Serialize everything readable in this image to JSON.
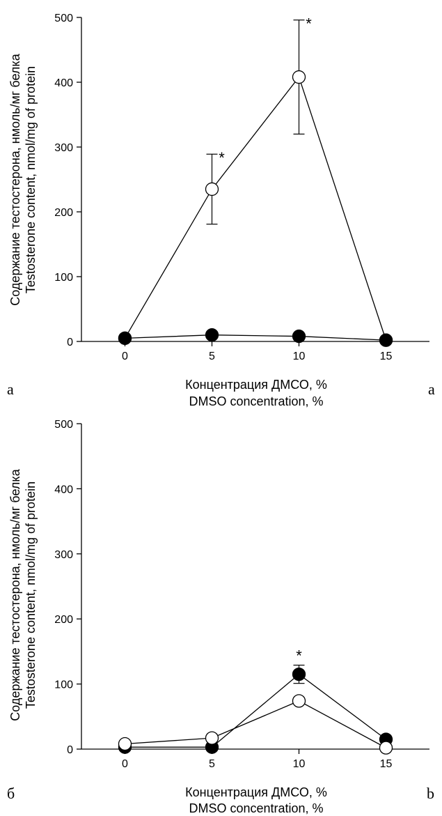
{
  "chart_data": [
    {
      "type": "line",
      "panel_label_left": "а",
      "panel_label_right": "a",
      "xlabel_ru": "Концентрация ДМСО, %",
      "xlabel_en": "DMSO concentration, %",
      "ylabel_ru": "Содержание тестостерона, нмоль/мг белка",
      "ylabel_en": "Testosterone content, nmol/mg of protein",
      "x": [
        0,
        5,
        10,
        15
      ],
      "xticks": [
        0,
        5,
        10,
        15
      ],
      "yticks": [
        0,
        100,
        200,
        300,
        400,
        500
      ],
      "xlim": [
        -2.5,
        17.5
      ],
      "ylim": [
        0,
        500
      ],
      "series": [
        {
          "marker": "open",
          "values": [
            5,
            235,
            408,
            2
          ],
          "error": [
            null,
            54,
            88,
            null
          ]
        },
        {
          "marker": "filled",
          "values": [
            5,
            10,
            8,
            2
          ],
          "error": [
            null,
            null,
            null,
            null
          ]
        }
      ],
      "annotations": [
        {
          "text": "*",
          "x": 5,
          "y": 288
        },
        {
          "text": "*",
          "x": 10,
          "y": 495
        }
      ]
    },
    {
      "type": "line",
      "panel_label_left": "б",
      "panel_label_right": "b",
      "xlabel_ru": "Концентрация ДМСО, %",
      "xlabel_en": "DMSO concentration, %",
      "ylabel_ru": "Содержание тестостерона, нмоль/мг белка",
      "ylabel_en": "Testosterone content, nmol/mg of protein",
      "x": [
        0,
        5,
        10,
        15
      ],
      "xticks": [
        0,
        5,
        10,
        15
      ],
      "yticks": [
        0,
        100,
        200,
        300,
        400,
        500
      ],
      "xlim": [
        -2.5,
        17.5
      ],
      "ylim": [
        0,
        500
      ],
      "series": [
        {
          "marker": "filled",
          "values": [
            3,
            3,
            115,
            15
          ],
          "error": [
            null,
            null,
            14,
            null
          ]
        },
        {
          "marker": "open",
          "values": [
            8,
            17,
            74,
            2
          ],
          "error": [
            null,
            null,
            null,
            null
          ]
        }
      ],
      "annotations": [
        {
          "text": "*",
          "x": 10,
          "y": 129
        }
      ]
    }
  ]
}
